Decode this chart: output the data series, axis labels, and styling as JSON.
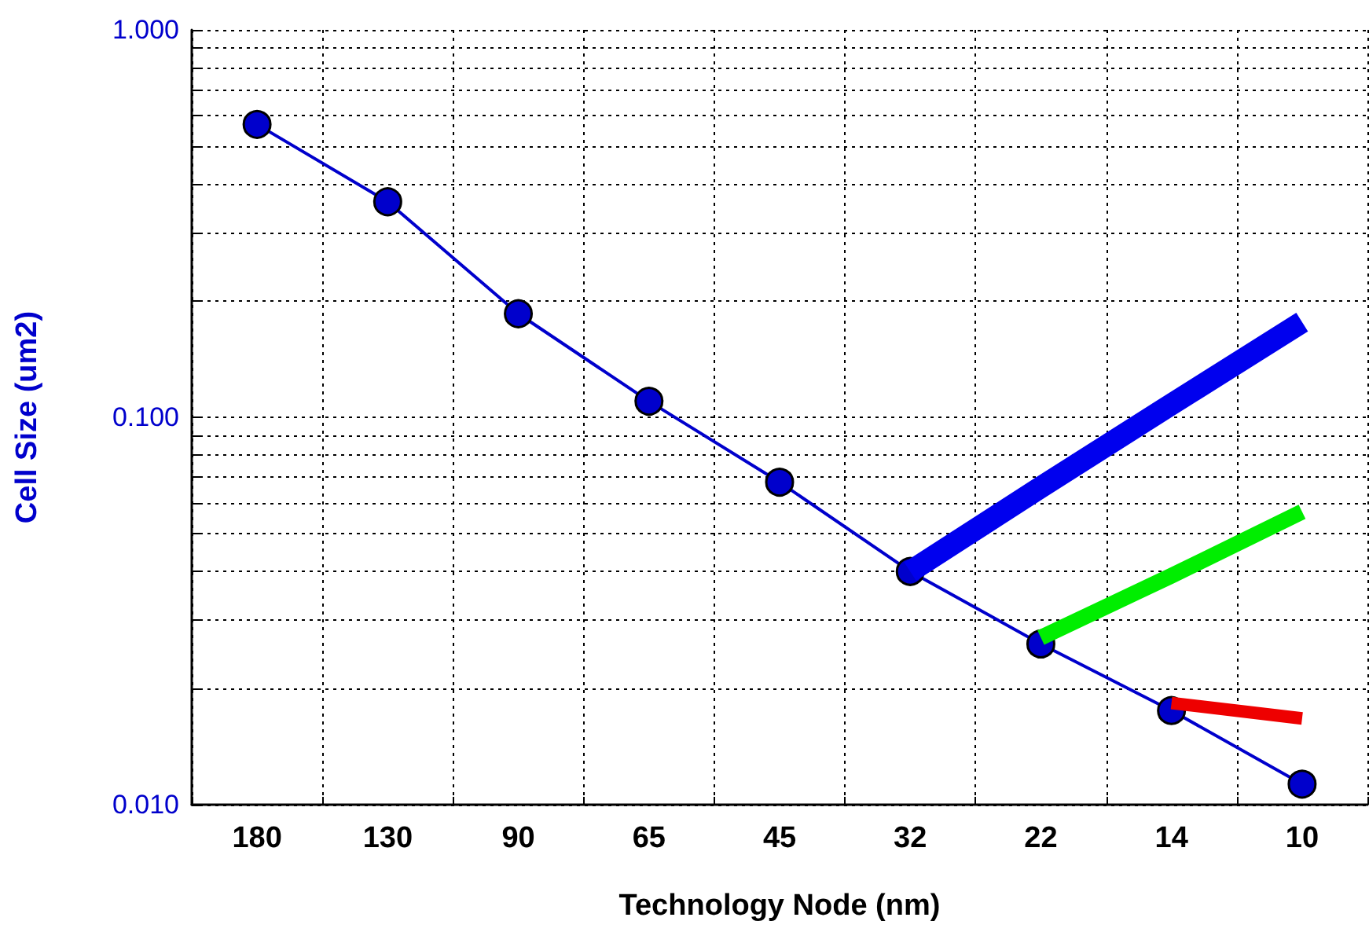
{
  "chart_data": {
    "type": "line",
    "xlabel": "Technology Node (nm)",
    "ylabel": "Cell Size (um2)",
    "categories": [
      "180",
      "130",
      "90",
      "65",
      "45",
      "32",
      "22",
      "14",
      "10"
    ],
    "series": [
      {
        "color": "#0000cc",
        "values": [
          0.57,
          0.36,
          0.185,
          0.11,
          0.068,
          0.04,
          0.026,
          0.0175,
          0.0113
        ]
      },
      {
        "color": "#0000ee",
        "marker": "none",
        "values": [
          null,
          null,
          null,
          null,
          null,
          0.04,
          0.066,
          0.108,
          0.176
        ]
      },
      {
        "color": "#00ee00",
        "marker": "none",
        "values": [
          null,
          null,
          null,
          null,
          null,
          null,
          0.027,
          0.039,
          0.057
        ]
      },
      {
        "color": "#ee0000",
        "marker": "none",
        "values": [
          null,
          null,
          null,
          null,
          null,
          null,
          null,
          0.0183,
          0.0167
        ]
      }
    ],
    "log": true,
    "ylim": [
      0.01,
      1
    ],
    "yticks": [
      {
        "value": 0.01,
        "label": "0.010"
      },
      {
        "value": 0.02,
        "label": null
      },
      {
        "value": 0.03,
        "label": null
      },
      {
        "value": 0.04,
        "label": null
      },
      {
        "value": 0.05,
        "label": null
      },
      {
        "value": 0.06,
        "label": null
      },
      {
        "value": 0.07,
        "label": null
      },
      {
        "value": 0.08,
        "label": null
      },
      {
        "value": 0.09,
        "label": null
      },
      {
        "value": 0.1,
        "label": "0.100"
      },
      {
        "value": 0.2,
        "label": null
      },
      {
        "value": 0.3,
        "label": null
      },
      {
        "value": 0.4,
        "label": null
      },
      {
        "value": 0.5,
        "label": null
      },
      {
        "value": 0.6,
        "label": null
      },
      {
        "value": 0.7,
        "label": null
      },
      {
        "value": 0.8,
        "label": null
      },
      {
        "value": 0.9,
        "label": null
      },
      {
        "value": 1,
        "label": "1.000"
      }
    ],
    "grid": true,
    "marker": "circle",
    "line_style": "solid"
  }
}
